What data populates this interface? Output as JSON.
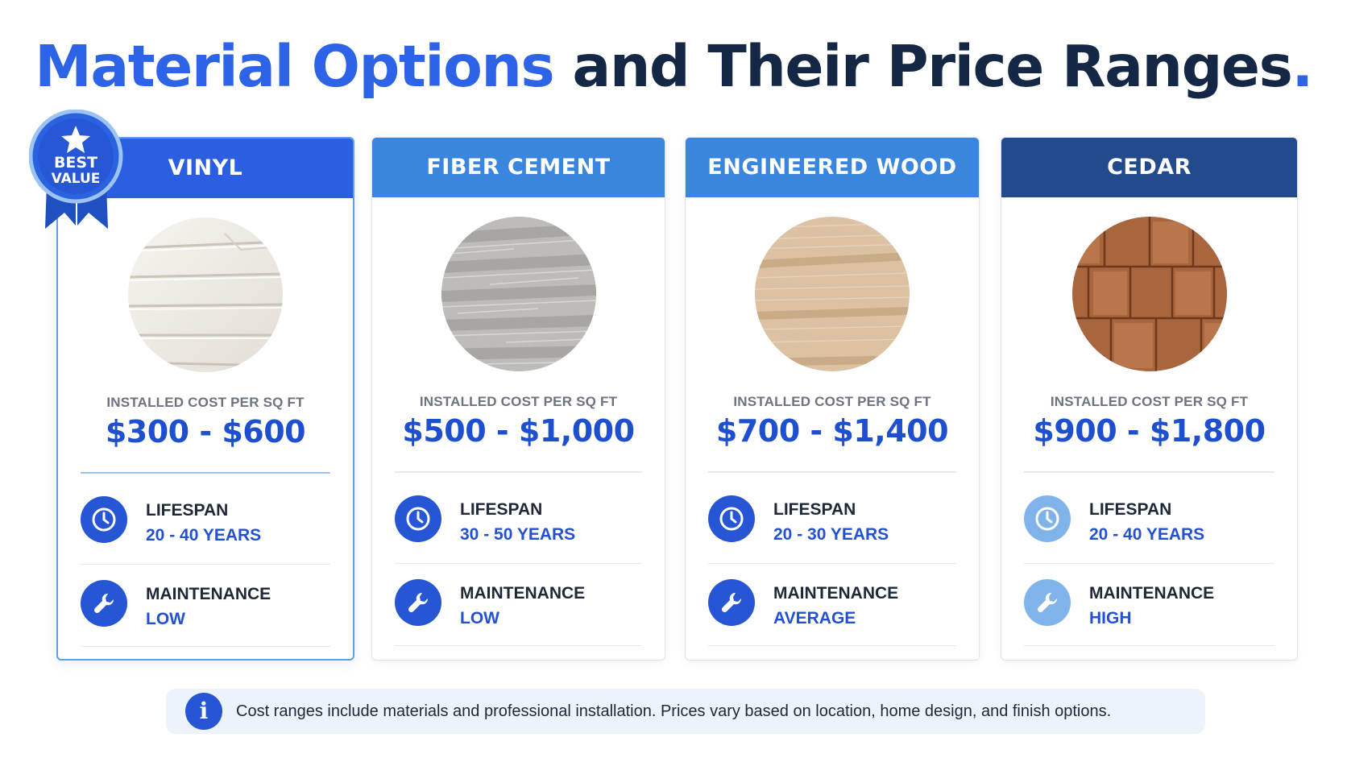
{
  "title": {
    "part1": "Material Options",
    "part2": "and Their Price Ranges",
    "period": "."
  },
  "badge": {
    "line1": "BEST",
    "line2": "VALUE"
  },
  "colors": {
    "accent": "#2d63e6",
    "dark_navy": "#142845",
    "price": "#1e4fcf",
    "icon": "#2656d3",
    "icon_light": "#7fb3ea"
  },
  "cards": [
    {
      "name": "VINYL",
      "header_color": "#2b5ee0",
      "swatch_icon": "white-vinyl-siding",
      "cost_label": "INSTALLED COST PER SQ FT",
      "cost": "$300 - $600",
      "lifespan_label": "LIFESPAN",
      "lifespan": "20 - 40 YEARS",
      "maintenance_label": "MAINTENANCE",
      "maintenance": "LOW",
      "maintenance_icon": "wrench-icon"
    },
    {
      "name": "FIBER CEMENT",
      "header_color": "#3a86de",
      "swatch_icon": "gray-fiber-cement-siding",
      "cost_label": "INSTALLED COST PER SQ FT",
      "cost": "$500 - $1,000",
      "lifespan_label": "LIFESPAN",
      "lifespan": "30 - 50 YEARS",
      "maintenance_label": "MAINTENANCE",
      "maintenance": "LOW",
      "maintenance_icon": "wrench-icon"
    },
    {
      "name": "ENGINEERED WOOD",
      "header_color": "#3a86de",
      "swatch_icon": "tan-engineered-wood-siding",
      "cost_label": "INSTALLED COST PER SQ FT",
      "cost": "$700 - $1,400",
      "lifespan_label": "LIFESPAN",
      "lifespan": "20 - 30 YEARS",
      "maintenance_label": "MAINTENANCE",
      "maintenance": "AVERAGE",
      "maintenance_icon": "wrench-icon"
    },
    {
      "name": "CEDAR",
      "header_color": "#234a8c",
      "swatch_icon": "cedar-shingles",
      "cost_label": "INSTALLED COST PER SQ FT",
      "cost": "$900 - $1,800",
      "lifespan_label": "LIFESPAN",
      "lifespan": "20 - 40 YEARS",
      "maintenance_label": "MAINTENANCE",
      "maintenance": "HIGH",
      "maintenance_icon": "wrench-icon"
    }
  ],
  "footnote": {
    "icon": "info-icon",
    "text": "Cost ranges include materials and professional installation. Prices vary based on location, home design, and finish options."
  }
}
